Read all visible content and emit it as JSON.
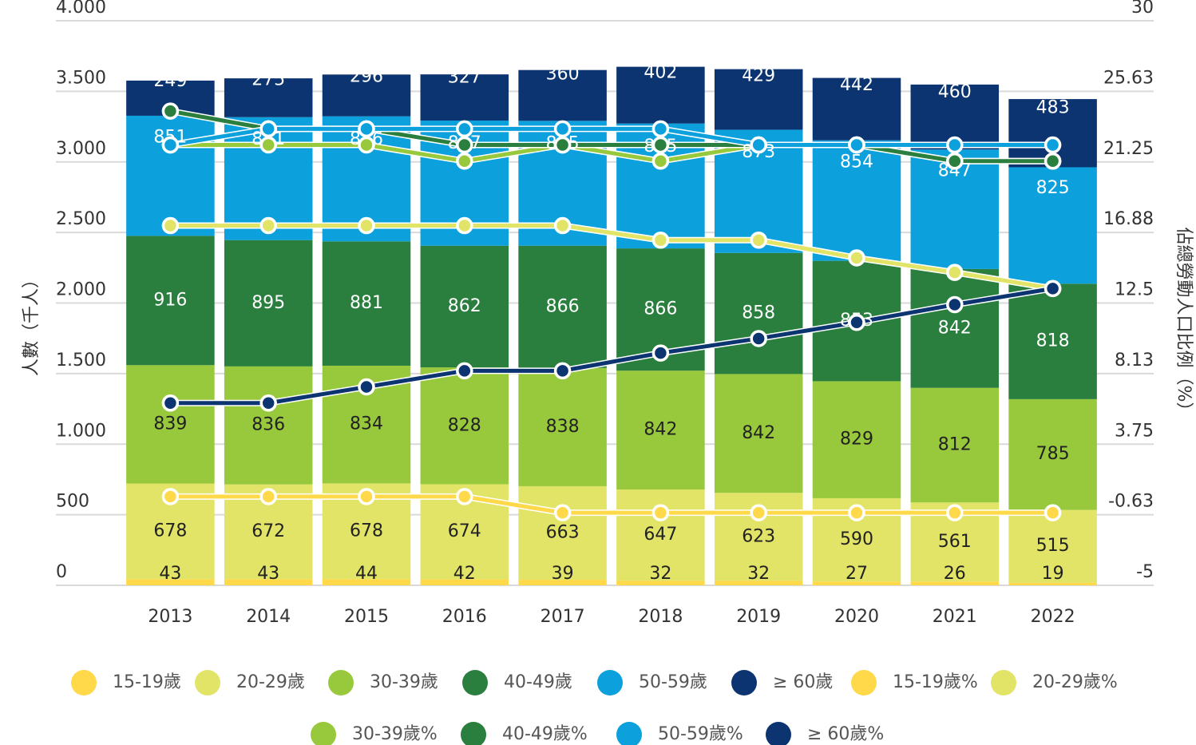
{
  "chart_data": {
    "type": "bar",
    "y_label": "人數（千人）",
    "y2_label": "佔總勞動人口比例（%）",
    "categories": [
      "2013",
      "2014",
      "2015",
      "2016",
      "2017",
      "2018",
      "2019",
      "2020",
      "2021",
      "2022"
    ],
    "stacked": true,
    "ylim": [
      0,
      4000
    ],
    "yticks": [
      0,
      500,
      {
        "value": 1000,
        "label": "1.000"
      },
      {
        "value": 1500,
        "label": "1.500"
      },
      {
        "value": 2000,
        "label": "2.000"
      },
      {
        "value": 2500,
        "label": "2.500"
      },
      {
        "value": 3000,
        "label": "3.000"
      },
      {
        "value": 3500,
        "label": "3.500"
      },
      {
        "value": 4000,
        "label": "4.000"
      }
    ],
    "y2lim": [
      -5,
      30
    ],
    "y2ticks": [
      -5,
      -0.63,
      3.75,
      8.13,
      12.5,
      16.88,
      21.25,
      25.63,
      30
    ],
    "grid": true,
    "legend": "bottom",
    "series": [
      {
        "name": "15-19歲",
        "type": "bar",
        "color": "#ffd94a",
        "values": [
          43,
          43,
          44,
          42,
          39,
          32,
          32,
          27,
          26,
          19
        ]
      },
      {
        "name": "20-29歲",
        "type": "bar",
        "color": "#e2e468",
        "values": [
          678,
          672,
          678,
          674,
          663,
          647,
          623,
          590,
          561,
          515
        ]
      },
      {
        "name": "30-39歲",
        "type": "bar",
        "color": "#98c93c",
        "values": [
          839,
          836,
          834,
          828,
          838,
          842,
          842,
          829,
          812,
          785
        ]
      },
      {
        "name": "40-49歲",
        "type": "bar",
        "color": "#2a7f3e",
        "values": [
          916,
          895,
          881,
          862,
          866,
          866,
          858,
          853,
          842,
          818
        ]
      },
      {
        "name": "50-59歲",
        "type": "bar",
        "color": "#0ca0dc",
        "values": [
          851,
          871,
          886,
          887,
          885,
          885,
          873,
          854,
          847,
          825
        ]
      },
      {
        "name": "≥ 60歲",
        "type": "bar",
        "color": "#0b3470",
        "values": [
          249,
          275,
          296,
          327,
          360,
          402,
          429,
          442,
          460,
          483
        ]
      },
      {
        "name": "15-19歲%",
        "type": "line",
        "axis": "y2",
        "color": "#ffd94a",
        "values": [
          0.5,
          0.5,
          0.5,
          0.5,
          -0.5,
          -0.5,
          -0.5,
          -0.5,
          -0.5,
          -0.5
        ]
      },
      {
        "name": "20-29歲%",
        "type": "line",
        "axis": "y2",
        "color": "#e2e468",
        "values": [
          17.3,
          17.3,
          17.3,
          17.3,
          17.3,
          16.4,
          16.4,
          15.3,
          14.4,
          13.4
        ]
      },
      {
        "name": "30-39歲%",
        "type": "line",
        "axis": "y2",
        "color": "#98c93c",
        "values": [
          22.3,
          22.3,
          22.3,
          21.3,
          22.3,
          21.3,
          22.3,
          22.3,
          21.3,
          21.3
        ]
      },
      {
        "name": "40-49歲%",
        "type": "line",
        "axis": "y2",
        "color": "#2a7f3e",
        "values": [
          24.4,
          23.3,
          23.3,
          22.3,
          22.3,
          22.3,
          22.3,
          22.3,
          21.3,
          21.3
        ]
      },
      {
        "name": "50-59歲%",
        "type": "line",
        "axis": "y2",
        "color": "#0ca0dc",
        "values": [
          22.3,
          23.3,
          23.3,
          23.3,
          23.3,
          23.3,
          22.3,
          22.3,
          22.3,
          22.3
        ]
      },
      {
        "name": "≥ 60歲%",
        "type": "line",
        "axis": "y2",
        "color": "#0b3470",
        "values": [
          6.3,
          6.3,
          7.3,
          8.3,
          8.3,
          9.4,
          10.3,
          11.3,
          12.4,
          13.4
        ]
      }
    ]
  }
}
